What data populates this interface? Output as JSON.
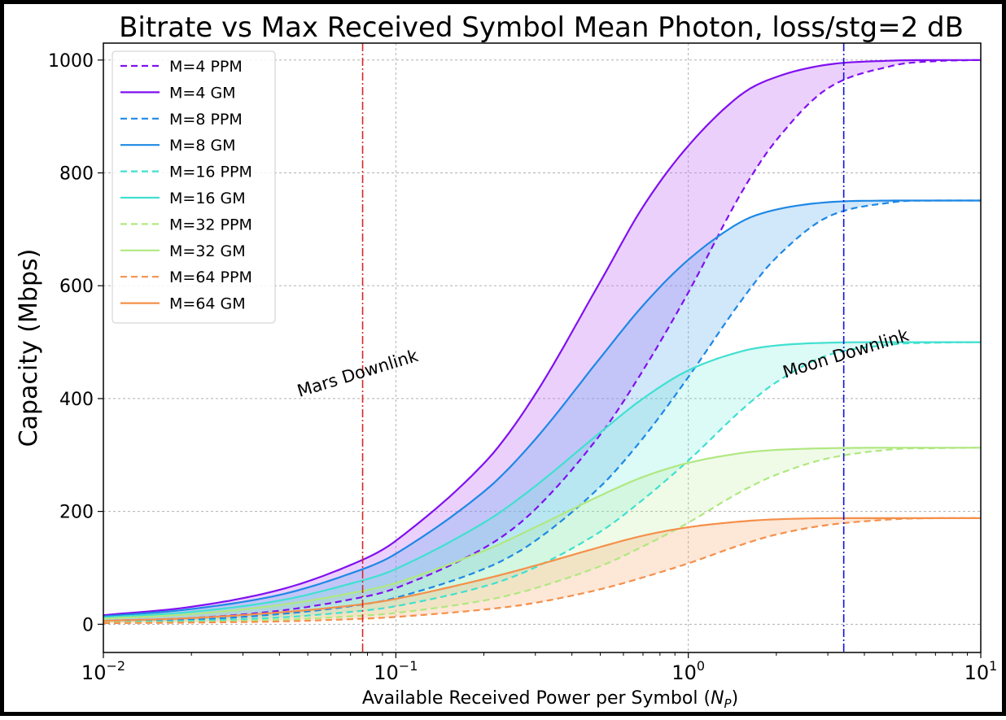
{
  "chart_data": {
    "type": "line",
    "title": "Bitrate vs Max Received Symbol Mean Photon, loss/stg=2 dB",
    "xlabel_main": "Available Received Power per Symbol (",
    "xlabel_var": "N",
    "xlabel_sub": "P",
    "xlabel_close": ")",
    "ylabel": "Capacity (Mbps)",
    "xscale": "log",
    "xlim": [
      0.01,
      10
    ],
    "ylim": [
      -50,
      1030
    ],
    "grid": true,
    "legend_position": "upper-left",
    "x_ticks": [
      {
        "value": 0.01,
        "base": "10",
        "exp": "−2"
      },
      {
        "value": 0.1,
        "base": "10",
        "exp": "−1"
      },
      {
        "value": 1,
        "base": "10",
        "exp": "0"
      },
      {
        "value": 10,
        "base": "10",
        "exp": "1"
      }
    ],
    "y_ticks": [
      {
        "value": 0,
        "label": "0"
      },
      {
        "value": 200,
        "label": "200"
      },
      {
        "value": 400,
        "label": "400"
      },
      {
        "value": 600,
        "label": "600"
      },
      {
        "value": 800,
        "label": "800"
      },
      {
        "value": 1000,
        "label": "1000"
      }
    ],
    "vlines": [
      {
        "label": "Mars Downlink",
        "x": 0.077,
        "color": "#d62728",
        "label_x": 0.075,
        "label_y": 435
      },
      {
        "label": "Moon Downlink",
        "x": 3.4,
        "color": "#1010e0",
        "label_x": 3.5,
        "label_y": 470
      }
    ],
    "x": [
      0.01,
      0.02,
      0.04,
      0.07,
      0.1,
      0.2,
      0.3,
      0.5,
      0.7,
      1.0,
      1.5,
      2.0,
      3.0,
      5.0,
      7.0,
      10.0
    ],
    "series": [
      {
        "name": "M=4 PPM",
        "color": "#8010f0",
        "style": "dashed",
        "values": [
          6,
          11,
          24,
          44,
          64,
          135,
          204,
          336,
          450,
          588,
          760,
          858,
          950,
          990,
          998,
          1000
        ]
      },
      {
        "name": "M=4 GM",
        "color": "#8010f0",
        "style": "solid",
        "values": [
          16,
          31,
          61,
          105,
          148,
          285,
          408,
          607,
          740,
          848,
          937,
          970,
          992,
          999,
          1000,
          1000
        ]
      },
      {
        "name": "M=8 PPM",
        "color": "#1e88e5",
        "style": "dashed",
        "values": [
          5,
          8,
          18,
          32,
          47,
          98,
          148,
          244,
          330,
          438,
          570,
          650,
          722,
          748,
          751,
          751
        ]
      },
      {
        "name": "M=8 GM",
        "color": "#1e88e5",
        "style": "solid",
        "values": [
          14,
          27,
          52,
          90,
          125,
          235,
          328,
          472,
          565,
          646,
          712,
          735,
          748,
          751,
          751,
          751
        ]
      },
      {
        "name": "M=16 PPM",
        "color": "#40e0d0",
        "style": "dashed",
        "values": [
          4,
          6,
          12,
          22,
          32,
          67,
          101,
          164,
          221,
          290,
          377,
          429,
          477,
          496,
          499,
          500
        ]
      },
      {
        "name": "M=16 GM",
        "color": "#40e0d0",
        "style": "solid",
        "values": [
          12,
          22,
          42,
          72,
          98,
          180,
          245,
          340,
          400,
          450,
          483,
          494,
          499,
          500,
          500,
          500
        ]
      },
      {
        "name": "M=32 PPM",
        "color": "#b0e880",
        "style": "dashed",
        "values": [
          3,
          4,
          8,
          14,
          20,
          42,
          64,
          103,
          138,
          180,
          234,
          265,
          294,
          310,
          312,
          313
        ]
      },
      {
        "name": "M=32 GM",
        "color": "#b0e880",
        "style": "solid",
        "values": [
          10,
          18,
          34,
          55,
          73,
          130,
          172,
          228,
          261,
          286,
          303,
          309,
          312,
          313,
          313,
          313
        ]
      },
      {
        "name": "M=64 PPM",
        "color": "#f4904a",
        "style": "dashed",
        "values": [
          2,
          3,
          5,
          9,
          13,
          26,
          38,
          62,
          83,
          108,
          140,
          159,
          176,
          186,
          188,
          188
        ]
      },
      {
        "name": "M=64 GM",
        "color": "#f4904a",
        "style": "solid",
        "values": [
          6,
          11,
          21,
          33,
          45,
          80,
          104,
          137,
          157,
          172,
          182,
          186,
          188,
          188,
          188,
          188
        ]
      }
    ],
    "fills": [
      {
        "upper": "M=4 GM",
        "lower": "M=4 PPM",
        "color": "#c878f5",
        "opacity": 0.35
      },
      {
        "upper": "M=8 GM",
        "lower": "M=8 PPM",
        "color": "#5aa8ee",
        "opacity": 0.28
      },
      {
        "upper": "M=16 GM",
        "lower": "M=16 PPM",
        "color": "#60e8d8",
        "opacity": 0.22
      },
      {
        "upper": "M=32 GM",
        "lower": "M=32 PPM",
        "color": "#b8ee90",
        "opacity": 0.22
      },
      {
        "upper": "M=64 GM",
        "lower": "M=64 PPM",
        "color": "#f6a060",
        "opacity": 0.25
      }
    ]
  }
}
